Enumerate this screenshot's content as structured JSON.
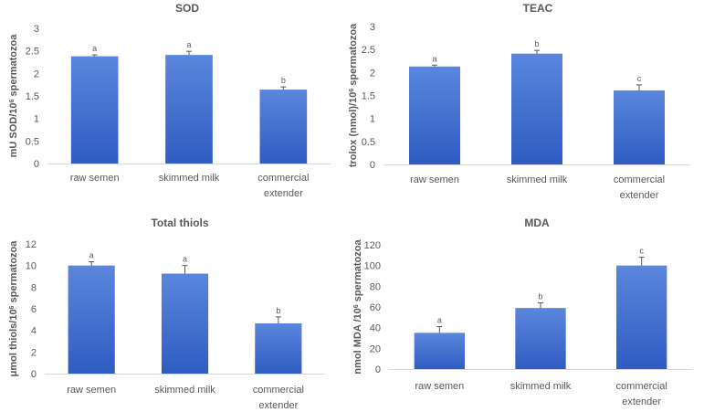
{
  "chart_data": [
    {
      "type": "bar",
      "title": "SOD",
      "ylabel_main": "mU SOD/10",
      "ylabel_sup": "6",
      "ylabel_rest": " spermatozoa",
      "categories": [
        "raw semen",
        "skimmed milk",
        "commercial extender"
      ],
      "values": [
        2.38,
        2.41,
        1.64
      ],
      "errors": [
        0.03,
        0.08,
        0.06
      ],
      "letters": [
        "a",
        "a",
        "b"
      ],
      "ylim": [
        0,
        3
      ],
      "yticks": [
        "0",
        "0.5",
        "1",
        "1.5",
        "2",
        "2.5",
        "3"
      ],
      "bar_color": "#3A67C9"
    },
    {
      "type": "bar",
      "title": "TEAC",
      "ylabel_main": "trolox (nmol)/10",
      "ylabel_sup": "6",
      "ylabel_rest": " spermatozoa",
      "categories": [
        "raw semen",
        "skimmed milk",
        "commercial extender"
      ],
      "values": [
        2.13,
        2.41,
        1.61
      ],
      "errors": [
        0.03,
        0.07,
        0.12
      ],
      "letters": [
        "a",
        "b",
        "c"
      ],
      "ylim": [
        0,
        3
      ],
      "yticks": [
        "0",
        "0.5",
        "1",
        "1.5",
        "2",
        "2.5",
        "3"
      ],
      "bar_color": "#3A67C9"
    },
    {
      "type": "bar",
      "title": "Total thiols",
      "ylabel_main": "μmol thiols/10",
      "ylabel_sup": "6",
      "ylabel_rest": " spermatozoa",
      "categories": [
        "raw semen",
        "skimmed milk",
        "commercial extender"
      ],
      "values": [
        10.0,
        9.25,
        4.65
      ],
      "errors": [
        0.35,
        0.75,
        0.6
      ],
      "letters": [
        "a",
        "a",
        "b"
      ],
      "ylim": [
        0,
        12
      ],
      "yticks": [
        "0",
        "2",
        "4",
        "6",
        "8",
        "10",
        "12"
      ],
      "bar_color": "#3A67C9"
    },
    {
      "type": "bar",
      "title": "MDA",
      "ylabel_main": "nmol MDA /10",
      "ylabel_sup": "6",
      "ylabel_rest": " spermatozoa",
      "categories": [
        "raw semen",
        "skimmed milk",
        "commercial extender"
      ],
      "values": [
        35,
        59,
        100
      ],
      "errors": [
        6,
        5,
        8
      ],
      "letters": [
        "a",
        "b",
        "c"
      ],
      "ylim": [
        0,
        120
      ],
      "yticks": [
        "0",
        "20",
        "40",
        "60",
        "80",
        "100",
        "120"
      ],
      "bar_color": "#3A67C9"
    }
  ]
}
